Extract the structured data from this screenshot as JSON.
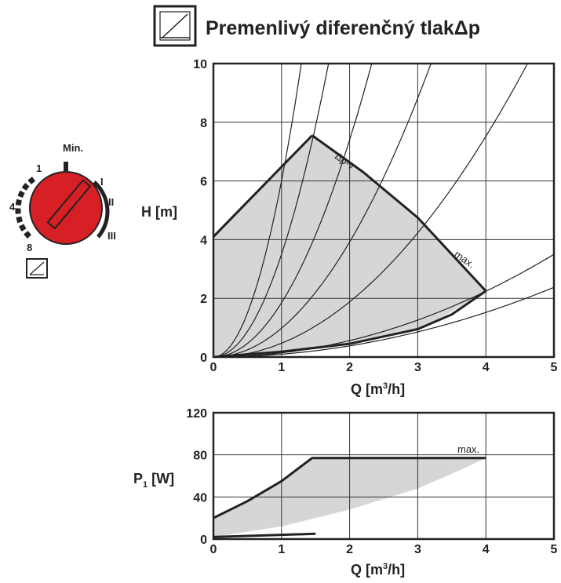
{
  "header": {
    "title": "Premenlivý diferenčný tlakΔp",
    "mode_icon": "proportional-pressure-icon"
  },
  "dial": {
    "label_min": "Min.",
    "label_1": "1",
    "label_4": "4",
    "label_8": "8",
    "label_I": "I",
    "label_II": "II",
    "label_III": "III",
    "knob_color": "#d71f26",
    "mode_icon": "proportional-pressure-icon"
  },
  "chart_data": [
    {
      "type": "line",
      "xlabel": "Q [m³/h]",
      "xlabel_main": "Q [m",
      "xlabel_sup": "3",
      "xlabel_end": "/h]",
      "ylabel": "H [m]",
      "xlim": [
        0,
        5
      ],
      "ylim": [
        0,
        10
      ],
      "xticks": [
        "0",
        "1",
        "2",
        "3",
        "4",
        "5"
      ],
      "yticks": [
        "0",
        "2",
        "4",
        "6",
        "8",
        "10"
      ],
      "grid": true,
      "annotations": [
        "Δp-v",
        "max."
      ],
      "fill_color": "#d4d6d8",
      "region_outline": [
        [
          0,
          4.1
        ],
        [
          1.45,
          7.55
        ],
        [
          2.2,
          6.3
        ],
        [
          3.0,
          4.75
        ],
        [
          3.6,
          3.25
        ],
        [
          4.0,
          2.25
        ],
        [
          3.1,
          1.0
        ],
        [
          2.0,
          0.45
        ],
        [
          1.0,
          0.18
        ],
        [
          0,
          0
        ]
      ],
      "series": [
        {
          "values": [
            [
              0,
              4.1
            ],
            [
              1.45,
              7.55
            ]
          ]
        },
        {
          "values": [
            [
              1.45,
              7.55
            ],
            [
              2.2,
              6.3
            ],
            [
              3.0,
              4.75
            ],
            [
              3.6,
              3.25
            ],
            [
              4.0,
              2.25
            ]
          ]
        },
        {
          "values": [
            [
              0,
              0
            ],
            [
              1.0,
              0.18
            ],
            [
              2.0,
              0.45
            ],
            [
              3.0,
              0.95
            ],
            [
              3.5,
              1.45
            ],
            [
              4.0,
              2.25
            ]
          ]
        }
      ],
      "system_curves_k": [
        6.0,
        3.5,
        1.85,
        0.98,
        0.47,
        0.14,
        0.095
      ]
    },
    {
      "type": "area",
      "xlabel": "Q [m³/h]",
      "xlabel_main": "Q [m",
      "xlabel_sup": "3",
      "xlabel_end": "/h]",
      "ylabel": "P1 [W]",
      "ylabel_main": "P",
      "ylabel_sub": "1",
      "ylabel_end": " [W]",
      "xlim": [
        0,
        5
      ],
      "ylim": [
        0,
        120
      ],
      "xticks": [
        "0",
        "1",
        "2",
        "3",
        "4",
        "5"
      ],
      "yticks": [
        "0",
        "40",
        "80",
        "120"
      ],
      "grid": true,
      "annotations": [
        "max."
      ],
      "fill_color": "#d4d6d8",
      "band_upper": [
        [
          0,
          20
        ],
        [
          0.5,
          36
        ],
        [
          1.0,
          55
        ],
        [
          1.45,
          77
        ],
        [
          4.0,
          77
        ]
      ],
      "band_lower": [
        [
          0,
          2
        ],
        [
          1.0,
          12
        ],
        [
          2.0,
          28
        ],
        [
          3.0,
          48
        ],
        [
          3.5,
          62
        ],
        [
          4.0,
          77
        ]
      ],
      "series": [
        {
          "values": [
            [
              0,
              20
            ],
            [
              0.5,
              36
            ],
            [
              1.0,
              55
            ],
            [
              1.45,
              77
            ],
            [
              4.0,
              77
            ]
          ]
        },
        {
          "values": [
            [
              0,
              2
            ],
            [
              1.5,
              5
            ]
          ]
        }
      ]
    }
  ]
}
